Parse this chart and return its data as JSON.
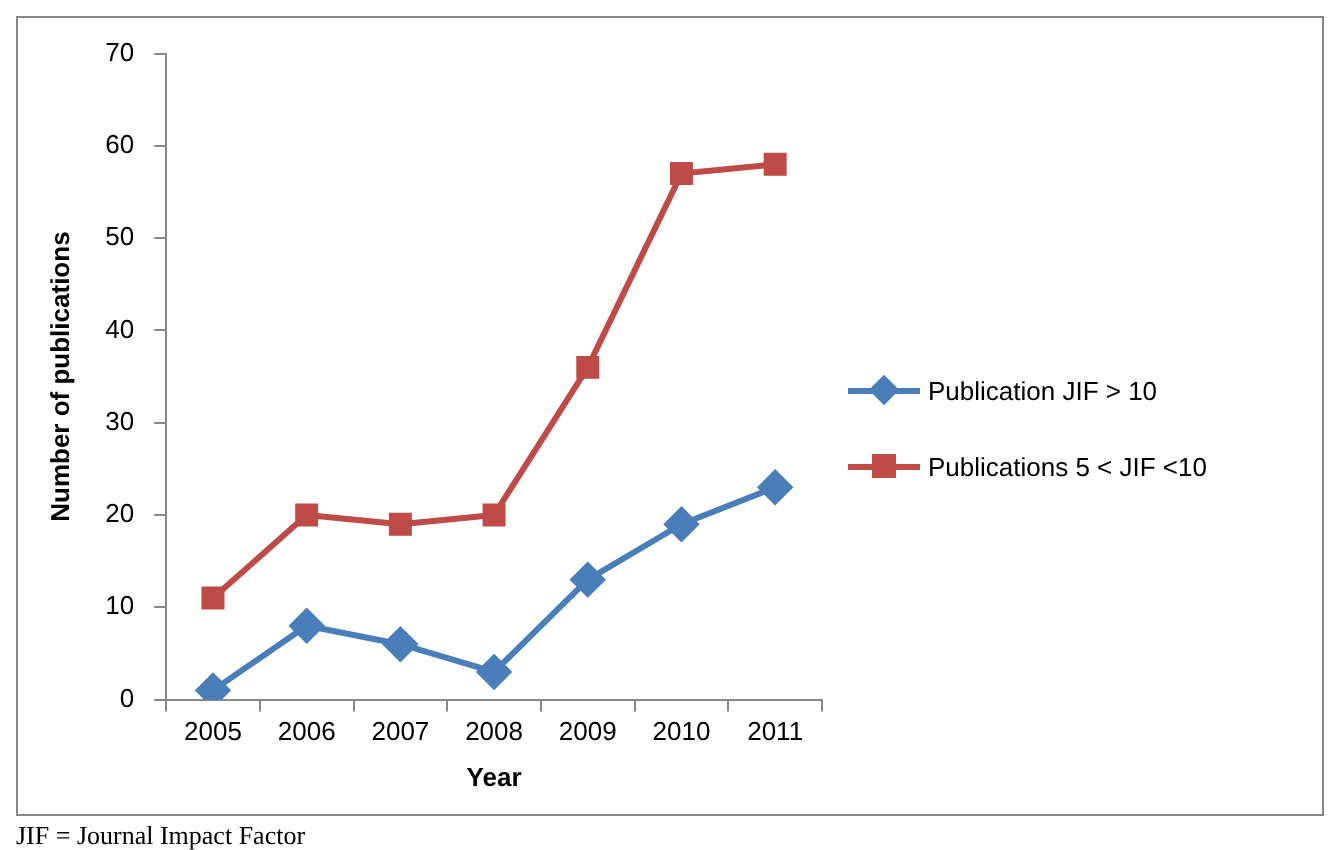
{
  "chart_data": {
    "type": "line",
    "xlabel": "Year",
    "ylabel": "Number of publications",
    "categories": [
      "2005",
      "2006",
      "2007",
      "2008",
      "2009",
      "2010",
      "2011"
    ],
    "series": [
      {
        "name": "Publication JIF > 10",
        "color": "#4a7ebb",
        "values": [
          1,
          8,
          6,
          3,
          13,
          19,
          23
        ],
        "marker": "diamond"
      },
      {
        "name": "Publications 5 < JIF <10",
        "color": "#be4b48",
        "values": [
          11,
          20,
          19,
          20,
          36,
          57,
          58
        ],
        "marker": "square"
      }
    ],
    "ylim": [
      0,
      70
    ],
    "yticks": [
      0,
      10,
      20,
      30,
      40,
      50,
      60,
      70
    ],
    "grid": false,
    "legend": "right",
    "line_style": "solid",
    "annotations": [
      "JIF = Journal Impact Factor"
    ]
  }
}
